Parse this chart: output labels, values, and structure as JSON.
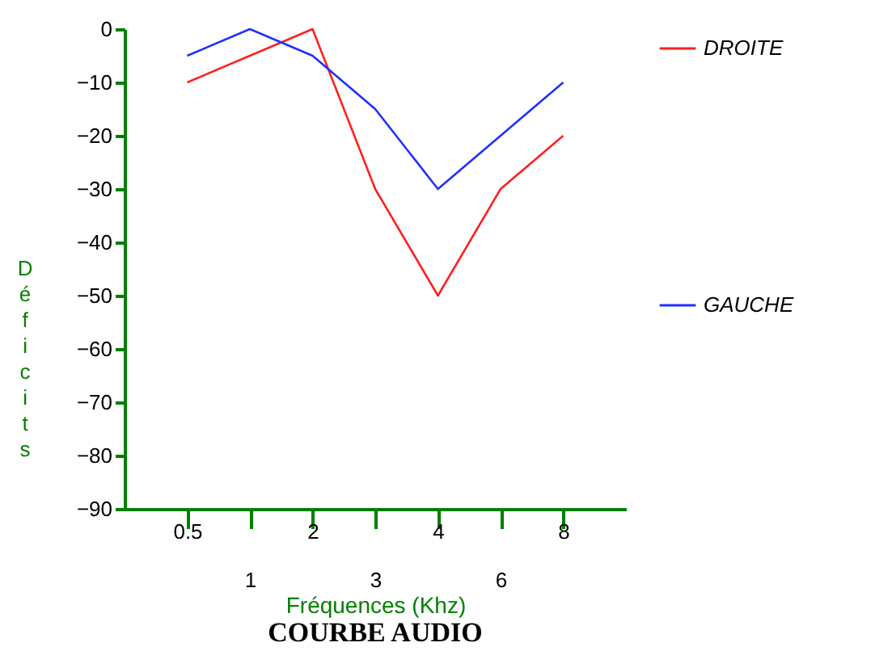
{
  "chart_data": {
    "type": "line",
    "title": "COURBE AUDIO",
    "xlabel": "Fréquences (Khz)",
    "ylabel": "Déficits",
    "categories": [
      "0.5",
      "1",
      "2",
      "3",
      "4",
      "6",
      "8"
    ],
    "ylim": [
      -90,
      0
    ],
    "yticks": [
      0,
      -10,
      -20,
      -30,
      -40,
      -50,
      -60,
      -70,
      -80,
      -90
    ],
    "series": [
      {
        "name": "DROITE",
        "color": "#ff2020",
        "values": [
          -10,
          -5,
          0,
          -30,
          -50,
          -30,
          -20
        ]
      },
      {
        "name": "GAUCHE",
        "color": "#2030ff",
        "values": [
          -5,
          0,
          -5,
          -15,
          -30,
          -20,
          -10
        ]
      }
    ],
    "grid": false,
    "legend": "right",
    "marker": "none",
    "line_style": "solid"
  }
}
